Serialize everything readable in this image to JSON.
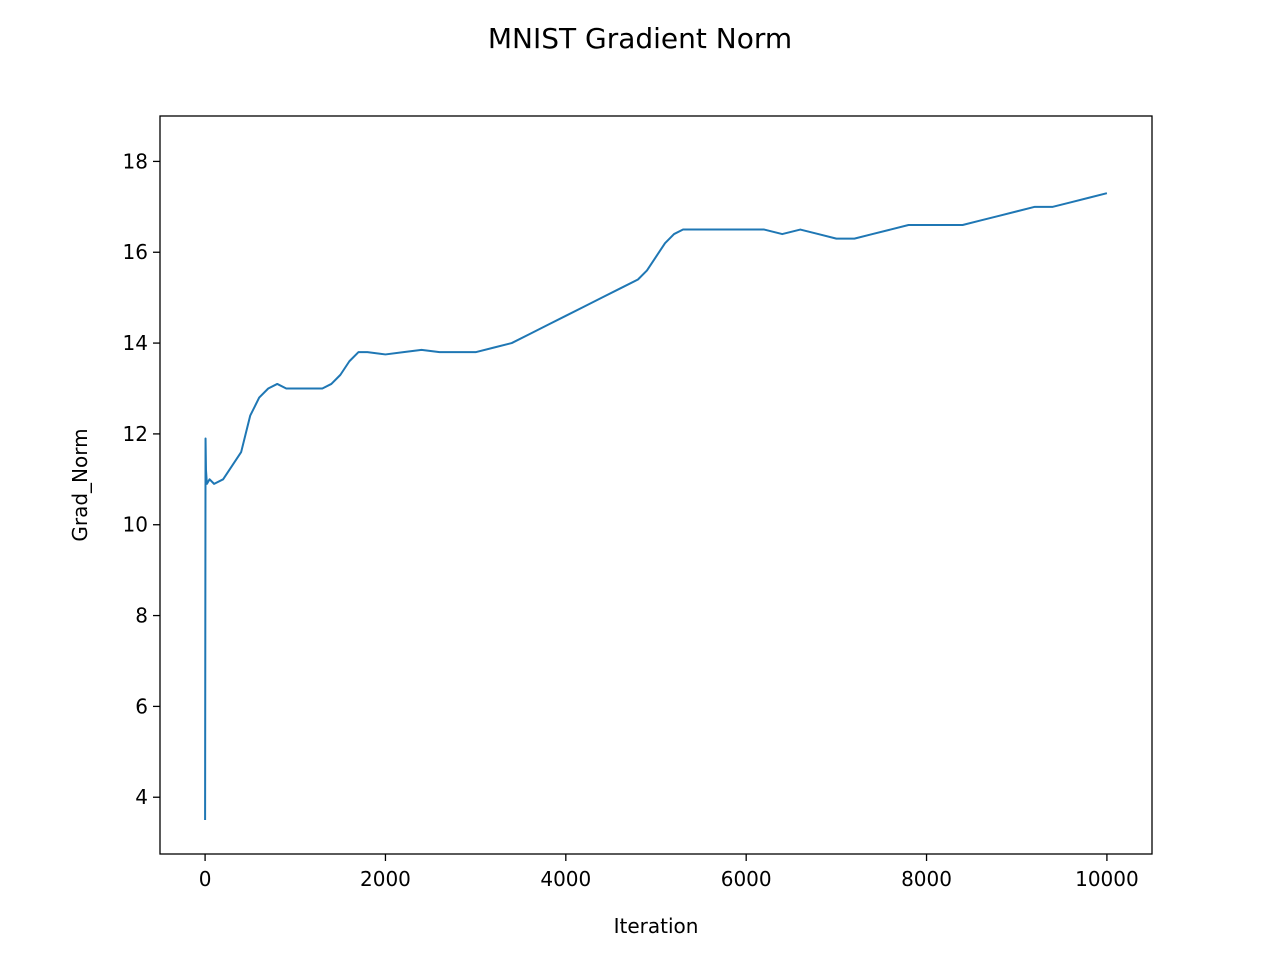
{
  "chart_data": {
    "type": "line",
    "title": "MNIST Gradient Norm",
    "xlabel": "Iteration",
    "ylabel": "Grad_Norm",
    "xlim": [
      -500,
      10500
    ],
    "ylim": [
      2.75,
      19.0
    ],
    "xticks": [
      0,
      2000,
      4000,
      6000,
      8000,
      10000
    ],
    "yticks": [
      4,
      6,
      8,
      10,
      12,
      14,
      16,
      18
    ],
    "grid": false,
    "legend": "none",
    "line_color": "#1f77b4",
    "series": [
      {
        "x": [
          0,
          5,
          10,
          20,
          50,
          100,
          200,
          300,
          400,
          450,
          500,
          550,
          600,
          700,
          800,
          900,
          1000,
          1100,
          1200,
          1300,
          1400,
          1500,
          1600,
          1700,
          1800,
          2000,
          2200,
          2400,
          2600,
          2800,
          3000,
          3200,
          3400,
          3600,
          3800,
          4000,
          4200,
          4400,
          4600,
          4800,
          4900,
          5000,
          5100,
          5200,
          5300,
          5400,
          5600,
          5800,
          6000,
          6200,
          6400,
          6600,
          6800,
          7000,
          7200,
          7400,
          7600,
          7800,
          8000,
          8200,
          8400,
          8600,
          8800,
          9000,
          9200,
          9400,
          9600,
          9800,
          10000
        ],
        "y": [
          3.5,
          11.9,
          11.2,
          10.9,
          11.0,
          10.9,
          11.0,
          11.3,
          11.6,
          12.0,
          12.4,
          12.6,
          12.8,
          13.0,
          13.1,
          13.0,
          13.0,
          13.0,
          13.0,
          13.0,
          13.1,
          13.3,
          13.6,
          13.8,
          13.8,
          13.75,
          13.8,
          13.85,
          13.8,
          13.8,
          13.8,
          13.9,
          14.0,
          14.2,
          14.4,
          14.6,
          14.8,
          15.0,
          15.2,
          15.4,
          15.6,
          15.9,
          16.2,
          16.4,
          16.5,
          16.5,
          16.5,
          16.5,
          16.5,
          16.5,
          16.4,
          16.5,
          16.4,
          16.3,
          16.3,
          16.4,
          16.5,
          16.6,
          16.6,
          16.6,
          16.6,
          16.7,
          16.8,
          16.9,
          17.0,
          17.0,
          17.1,
          17.2,
          17.3
        ]
      }
    ]
  }
}
